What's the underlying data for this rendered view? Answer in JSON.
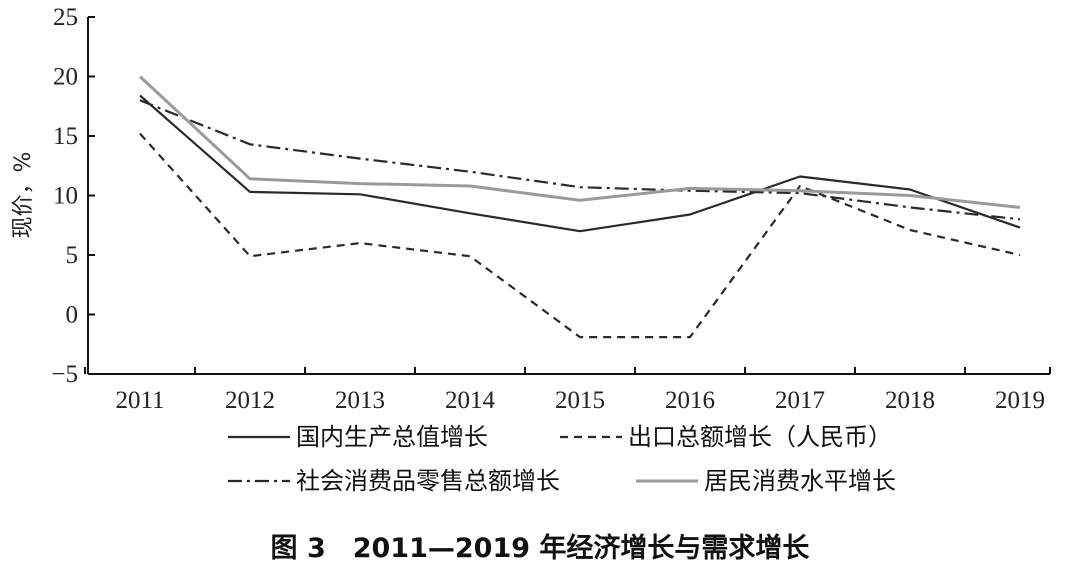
{
  "caption": "图 3　2011—2019 年经济增长与需求增长",
  "chart_data": {
    "type": "line",
    "title": "",
    "xlabel": "",
    "ylabel": "现价，%",
    "x": [
      "2011",
      "2012",
      "2013",
      "2014",
      "2015",
      "2016",
      "2017",
      "2018",
      "2019"
    ],
    "ylim": [
      -5,
      25
    ],
    "yticks": [
      -5,
      0,
      5,
      10,
      15,
      20,
      25
    ],
    "grid": false,
    "legend_position": "bottom",
    "series": [
      {
        "name": "国内生产总值增长",
        "values": [
          18.4,
          10.3,
          10.1,
          8.5,
          7.0,
          8.4,
          11.6,
          10.5,
          7.3
        ],
        "style": "solid",
        "color": "#2a2a2a"
      },
      {
        "name": "出口总额增长（人民币）",
        "values": [
          15.2,
          4.9,
          6.0,
          4.9,
          -1.9,
          -1.9,
          10.8,
          7.1,
          5.0
        ],
        "style": "dashed",
        "color": "#2a2a2a"
      },
      {
        "name": "社会消费品零售总额增长",
        "values": [
          18.0,
          14.3,
          13.1,
          12.0,
          10.7,
          10.4,
          10.2,
          9.0,
          8.0
        ],
        "style": "dashdot",
        "color": "#2a2a2a"
      },
      {
        "name": "居民消费水平增长",
        "values": [
          20.0,
          11.4,
          11.0,
          10.8,
          9.6,
          10.6,
          10.4,
          10.0,
          9.0
        ],
        "style": "solid",
        "color": "#9a9a9a"
      }
    ]
  }
}
